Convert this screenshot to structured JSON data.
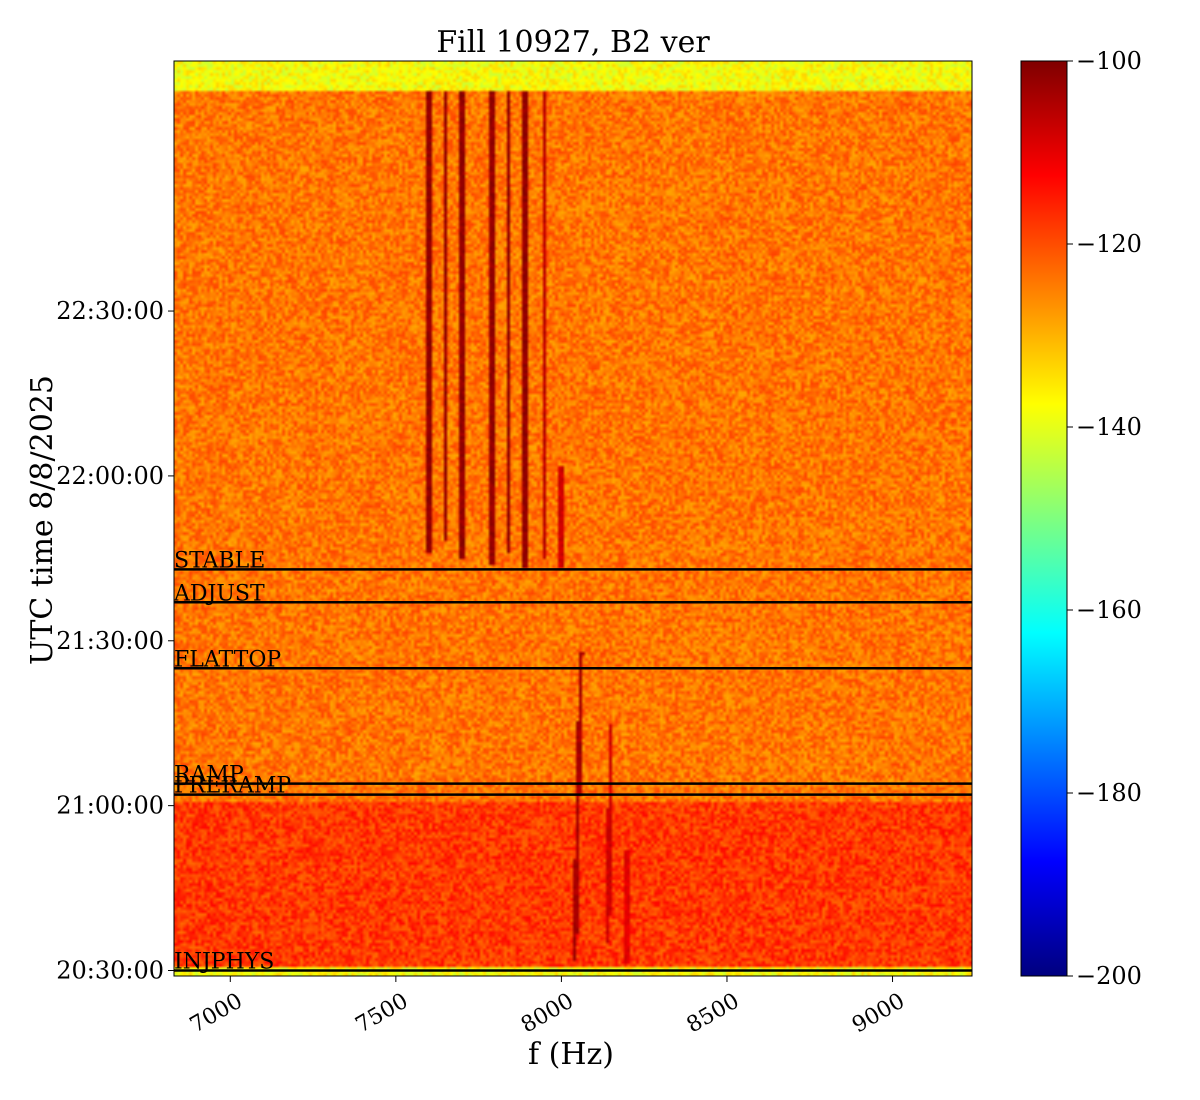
{
  "chart_data": {
    "type": "heatmap",
    "title": "Fill 10927, B2 ver",
    "xlabel": "f (Hz)",
    "ylabel": "UTC time 8/8/2025",
    "x_range": [
      6830,
      9240
    ],
    "y_range_seconds_after_midnight": [
      73740,
      83730
    ],
    "y_start_time": "20:29:00",
    "y_end_time": "23:15:30",
    "x_ticks": [
      {
        "value": 7000,
        "label": "7000"
      },
      {
        "value": 7500,
        "label": "7500"
      },
      {
        "value": 8000,
        "label": "8000"
      },
      {
        "value": 8500,
        "label": "8500"
      },
      {
        "value": 9000,
        "label": "9000"
      }
    ],
    "y_ticks": [
      {
        "time": "20:30:00",
        "label": "20:30:00"
      },
      {
        "time": "21:00:00",
        "label": "21:00:00"
      },
      {
        "time": "21:30:00",
        "label": "21:30:00"
      },
      {
        "time": "22:00:00",
        "label": "22:00:00"
      },
      {
        "time": "22:30:00",
        "label": "22:30:00"
      }
    ],
    "colorbar": {
      "colormap": "jet",
      "range": [
        -200,
        -100
      ],
      "ticks": [
        -100,
        -120,
        -140,
        -160,
        -180,
        -200
      ],
      "tick_labels": [
        "−100",
        "−120",
        "−140",
        "−160",
        "−180",
        "−200"
      ]
    },
    "background_level": -124,
    "beam_modes": [
      {
        "label": "INJPHYS",
        "time": "20:30:00"
      },
      {
        "label": "PRERAMP",
        "time": "21:02:00"
      },
      {
        "label": "RAMP",
        "time": "21:04:00"
      },
      {
        "label": "FLATTOP",
        "time": "21:25:00"
      },
      {
        "label": "ADJUST",
        "time": "21:37:00"
      },
      {
        "label": "STABLE",
        "time": "21:43:00"
      }
    ],
    "features": [
      {
        "kind": "band",
        "from": "20:29:00",
        "to": "20:30:30",
        "level": -138
      },
      {
        "kind": "band",
        "from": "20:30:30",
        "to": "21:00:30",
        "level": -118
      },
      {
        "kind": "band",
        "from": "23:10:00",
        "to": "23:15:30",
        "level": -138
      },
      {
        "kind": "line",
        "f_start": 8040,
        "f_end": 8060,
        "from": "20:32:00",
        "to": "21:28:00",
        "level": -104
      },
      {
        "kind": "line",
        "f_start": 8140,
        "f_end": 8150,
        "from": "20:35:00",
        "to": "21:15:00",
        "level": -108
      },
      {
        "kind": "line",
        "f_start": 8200,
        "f_end": 8200,
        "from": "20:31:00",
        "to": "20:52:00",
        "level": -110
      },
      {
        "kind": "line",
        "f_start": 7600,
        "f_end": 7600,
        "from": "21:46:00",
        "to": "23:10:00",
        "level": -102
      },
      {
        "kind": "line",
        "f_start": 7650,
        "f_end": 7650,
        "from": "21:48:00",
        "to": "23:10:00",
        "level": -102
      },
      {
        "kind": "line",
        "f_start": 7700,
        "f_end": 7700,
        "from": "21:45:00",
        "to": "23:10:00",
        "level": -102
      },
      {
        "kind": "line",
        "f_start": 7790,
        "f_end": 7790,
        "from": "21:44:00",
        "to": "23:10:00",
        "level": -102
      },
      {
        "kind": "line",
        "f_start": 7840,
        "f_end": 7840,
        "from": "21:46:00",
        "to": "23:10:00",
        "level": -102
      },
      {
        "kind": "line",
        "f_start": 7890,
        "f_end": 7890,
        "from": "21:43:00",
        "to": "23:10:00",
        "level": -102
      },
      {
        "kind": "line",
        "f_start": 7950,
        "f_end": 7950,
        "from": "21:45:00",
        "to": "23:10:00",
        "level": -106
      },
      {
        "kind": "line",
        "f_start": 8000,
        "f_end": 8000,
        "from": "21:43:00",
        "to": "22:02:00",
        "level": -108
      }
    ]
  }
}
